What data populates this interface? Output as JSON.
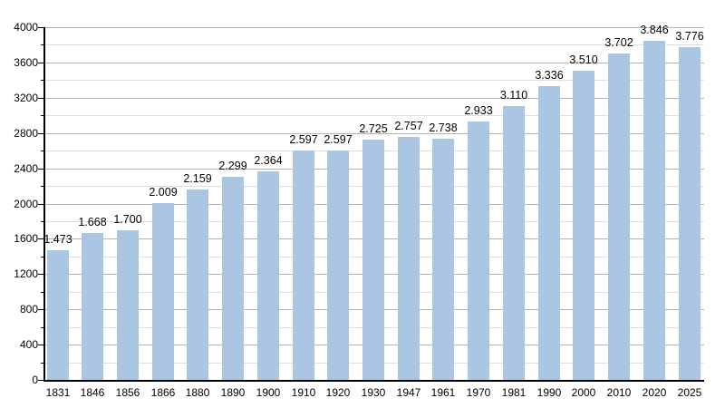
{
  "chart_data": {
    "type": "bar",
    "title": "",
    "xlabel": "",
    "ylabel": "",
    "categories": [
      "1831",
      "1846",
      "1856",
      "1866",
      "1880",
      "1890",
      "1900",
      "1910",
      "1920",
      "1930",
      "1947",
      "1961",
      "1970",
      "1981",
      "1990",
      "2000",
      "2010",
      "2020",
      "2025"
    ],
    "values": [
      1473,
      1668,
      1700,
      2009,
      2159,
      2299,
      2364,
      2597,
      2597,
      2725,
      2757,
      2738,
      2933,
      3110,
      3336,
      3510,
      3702,
      3846,
      3776
    ],
    "value_labels": [
      "1.473",
      "1.668",
      "1.700",
      "2.009",
      "2.159",
      "2.299",
      "2.364",
      "2.597",
      "2.597",
      "2.725",
      "2.757",
      "2.738",
      "2.933",
      "3.110",
      "3.336",
      "3.510",
      "3.702",
      "3.846",
      "3.776"
    ],
    "ylim": [
      0,
      4000
    ],
    "y_major_step": 400,
    "y_minor_step": 200,
    "y_tick_labels": [
      "0",
      "400",
      "800",
      "1200",
      "1600",
      "2000",
      "2400",
      "2800",
      "3200",
      "3600",
      "4000"
    ],
    "grid": "on",
    "legend": "none",
    "bar_color": "#aac6e3",
    "major_grid_color": "#b3b3b3",
    "minor_grid_color": "#dedede",
    "axis_color": "#000000",
    "label_color": "#000000",
    "background_color": "#ffffff"
  }
}
